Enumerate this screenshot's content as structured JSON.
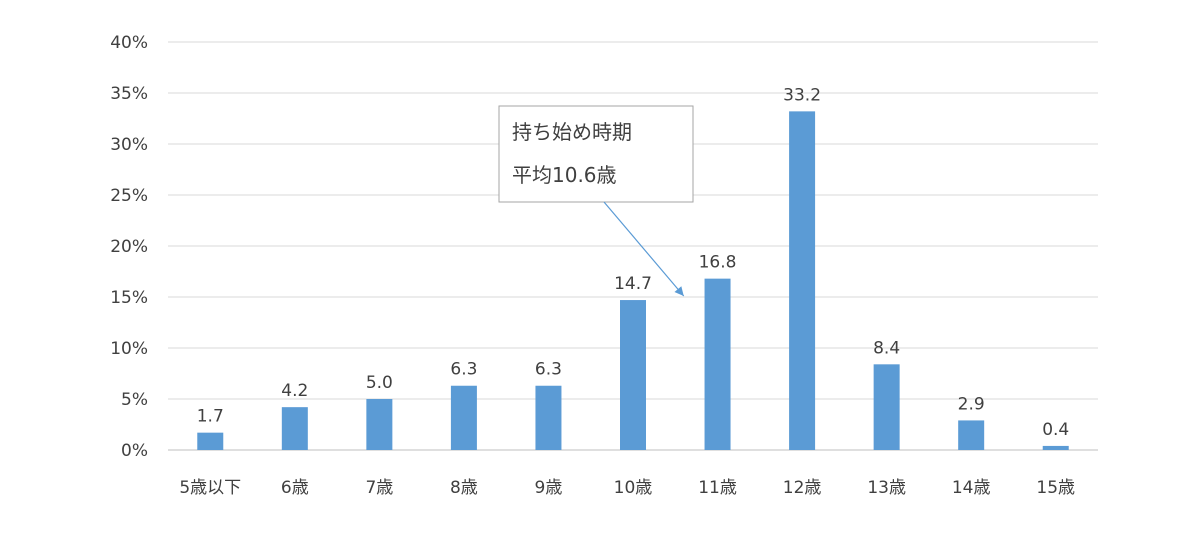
{
  "chart_data": {
    "type": "bar",
    "categories": [
      "5歳以下",
      "6歳",
      "7歳",
      "8歳",
      "9歳",
      "10歳",
      "11歳",
      "12歳",
      "13歳",
      "14歳",
      "15歳"
    ],
    "values": [
      1.7,
      4.2,
      5.0,
      6.3,
      6.3,
      14.7,
      16.8,
      33.2,
      8.4,
      2.9,
      0.4
    ],
    "data_labels": [
      "1.7",
      "4.2",
      "5.0",
      "6.3",
      "6.3",
      "14.7",
      "16.8",
      "33.2",
      "8.4",
      "2.9",
      "0.4"
    ],
    "y_ticks": [
      0,
      5,
      10,
      15,
      20,
      25,
      30,
      35,
      40
    ],
    "y_tick_labels": [
      "0%",
      "5%",
      "10%",
      "15%",
      "20%",
      "25%",
      "30%",
      "35%",
      "40%"
    ],
    "ylim": [
      0,
      40
    ],
    "grid": true,
    "bar_color": "#5b9bd5",
    "title": "",
    "xlabel": "",
    "ylabel": "",
    "annotation": {
      "lines": [
        "持ち始め時期",
        "平均10.6歳"
      ],
      "points_to": 10.6
    }
  }
}
